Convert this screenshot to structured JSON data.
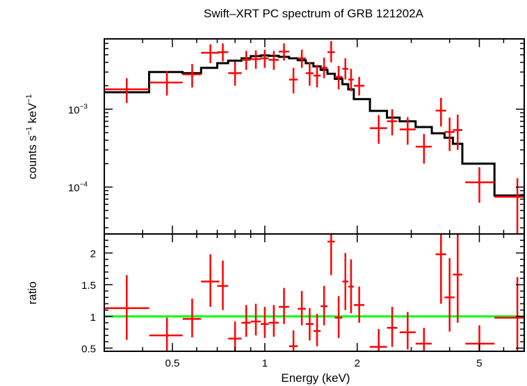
{
  "chart_data": [
    {
      "type": "scatter",
      "panel": "spectrum",
      "title": "Swift–XRT PC spectrum of GRB 121202A",
      "ylabel_main": "counts s",
      "ylabel_sup1": "−1",
      "ylabel_mid": " keV",
      "ylabel_sup2": "−1",
      "xscale": "log",
      "yscale": "log",
      "xlim": [
        0.3,
        7.0
      ],
      "ylim": [
        2.5e-05,
        0.008
      ],
      "yticks": [
        {
          "base": "10",
          "exp": "−3",
          "value": 0.001
        },
        {
          "base": "10",
          "exp": "−4",
          "value": 0.0001
        }
      ],
      "colors": {
        "data": "#ff0000",
        "model": "#000000"
      },
      "series": [
        {
          "style": "crosses",
          "points": [
            {
              "x": 0.355,
              "xlo": 0.3,
              "xhi": 0.42,
              "y": 0.0018,
              "ylo": 0.0012,
              "yhi": 0.0025
            },
            {
              "x": 0.48,
              "xlo": 0.42,
              "xhi": 0.54,
              "y": 0.0022,
              "ylo": 0.0015,
              "yhi": 0.0031
            },
            {
              "x": 0.58,
              "xlo": 0.54,
              "xhi": 0.62,
              "y": 0.0028,
              "ylo": 0.0019,
              "yhi": 0.0038
            },
            {
              "x": 0.665,
              "xlo": 0.62,
              "xhi": 0.71,
              "y": 0.0053,
              "ylo": 0.0039,
              "yhi": 0.0068
            },
            {
              "x": 0.73,
              "xlo": 0.7,
              "xhi": 0.76,
              "y": 0.0054,
              "ylo": 0.0041,
              "yhi": 0.007
            },
            {
              "x": 0.8,
              "xlo": 0.76,
              "xhi": 0.84,
              "y": 0.0029,
              "ylo": 0.002,
              "yhi": 0.0041
            },
            {
              "x": 0.87,
              "xlo": 0.84,
              "xhi": 0.9,
              "y": 0.0043,
              "ylo": 0.0032,
              "yhi": 0.0056
            },
            {
              "x": 0.935,
              "xlo": 0.9,
              "xhi": 0.97,
              "y": 0.0044,
              "ylo": 0.0033,
              "yhi": 0.0057
            },
            {
              "x": 1.0,
              "xlo": 0.97,
              "xhi": 1.03,
              "y": 0.0045,
              "ylo": 0.0034,
              "yhi": 0.0058
            },
            {
              "x": 1.07,
              "xlo": 1.03,
              "xhi": 1.11,
              "y": 0.0043,
              "ylo": 0.0032,
              "yhi": 0.0056
            },
            {
              "x": 1.155,
              "xlo": 1.11,
              "xhi": 1.2,
              "y": 0.0055,
              "ylo": 0.0042,
              "yhi": 0.007
            },
            {
              "x": 1.24,
              "xlo": 1.2,
              "xhi": 1.28,
              "y": 0.0024,
              "ylo": 0.0016,
              "yhi": 0.0034
            },
            {
              "x": 1.32,
              "xlo": 1.28,
              "xhi": 1.36,
              "y": 0.0045,
              "ylo": 0.0034,
              "yhi": 0.0058
            },
            {
              "x": 1.4,
              "xlo": 1.36,
              "xhi": 1.44,
              "y": 0.0029,
              "ylo": 0.002,
              "yhi": 0.004
            },
            {
              "x": 1.48,
              "xlo": 1.44,
              "xhi": 1.52,
              "y": 0.0027,
              "ylo": 0.0019,
              "yhi": 0.0037
            },
            {
              "x": 1.56,
              "xlo": 1.52,
              "xhi": 1.6,
              "y": 0.0034,
              "ylo": 0.0025,
              "yhi": 0.0046
            },
            {
              "x": 1.645,
              "xlo": 1.6,
              "xhi": 1.69,
              "y": 0.0054,
              "ylo": 0.004,
              "yhi": 0.0075
            },
            {
              "x": 1.74,
              "xlo": 1.69,
              "xhi": 1.79,
              "y": 0.0026,
              "ylo": 0.0018,
              "yhi": 0.0036
            },
            {
              "x": 1.83,
              "xlo": 1.79,
              "xhi": 1.87,
              "y": 0.0033,
              "ylo": 0.0024,
              "yhi": 0.0045
            },
            {
              "x": 1.91,
              "xlo": 1.87,
              "xhi": 1.95,
              "y": 0.0024,
              "ylo": 0.0017,
              "yhi": 0.0033
            },
            {
              "x": 2.03,
              "xlo": 1.95,
              "xhi": 2.11,
              "y": 0.002,
              "ylo": 0.0015,
              "yhi": 0.0026
            },
            {
              "x": 2.35,
              "xlo": 2.2,
              "xhi": 2.5,
              "y": 0.00057,
              "ylo": 0.00036,
              "yhi": 0.00084
            },
            {
              "x": 2.6,
              "xlo": 2.5,
              "xhi": 2.7,
              "y": 0.0007,
              "ylo": 0.00046,
              "yhi": 0.001
            },
            {
              "x": 2.92,
              "xlo": 2.75,
              "xhi": 3.1,
              "y": 0.00055,
              "ylo": 0.00035,
              "yhi": 0.00079
            },
            {
              "x": 3.3,
              "xlo": 3.1,
              "xhi": 3.5,
              "y": 0.00033,
              "ylo": 0.0002,
              "yhi": 0.00048
            },
            {
              "x": 3.75,
              "xlo": 3.6,
              "xhi": 3.9,
              "y": 0.00096,
              "ylo": 0.0006,
              "yhi": 0.0014
            },
            {
              "x": 4.0,
              "xlo": 3.85,
              "xhi": 4.15,
              "y": 0.00051,
              "ylo": 0.00029,
              "yhi": 0.00078
            },
            {
              "x": 4.25,
              "xlo": 4.1,
              "xhi": 4.4,
              "y": 0.00054,
              "ylo": 0.0003,
              "yhi": 0.00085
            },
            {
              "x": 5.0,
              "xlo": 4.5,
              "xhi": 5.6,
              "y": 0.000115,
              "ylo": 6.3e-05,
              "yhi": 0.00018
            },
            {
              "x": 6.65,
              "xlo": 5.6,
              "xhi": 7.0,
              "y": 7.5e-05,
              "ylo": 2.5e-05,
              "yhi": 0.00013
            }
          ]
        },
        {
          "style": "step",
          "edges": [
            0.3,
            0.42,
            0.54,
            0.62,
            0.7,
            0.76,
            0.84,
            0.9,
            0.97,
            1.03,
            1.11,
            1.2,
            1.28,
            1.36,
            1.44,
            1.52,
            1.6,
            1.69,
            1.79,
            1.87,
            1.95,
            2.2,
            2.5,
            2.75,
            3.1,
            3.5,
            3.85,
            4.1,
            4.4,
            5.6,
            7.0
          ],
          "values": [
            0.00165,
            0.003,
            0.0029,
            0.0034,
            0.0039,
            0.0042,
            0.0045,
            0.0048,
            0.0049,
            0.00485,
            0.0047,
            0.0045,
            0.00425,
            0.0039,
            0.00355,
            0.0032,
            0.00285,
            0.00245,
            0.0021,
            0.0018,
            0.00135,
            0.00095,
            0.00078,
            0.0007,
            0.00059,
            0.00049,
            0.00043,
            0.00036,
            0.0002,
            7.8e-05
          ]
        }
      ]
    },
    {
      "type": "scatter",
      "panel": "ratio",
      "xlabel": "Energy (keV)",
      "ylabel": "ratio",
      "xscale": "log",
      "xlim": [
        0.3,
        7.0
      ],
      "ylim": [
        0.45,
        2.3
      ],
      "xtick_labels": [
        {
          "label": "0.5",
          "value": 0.5
        },
        {
          "label": "1",
          "value": 1
        },
        {
          "label": "2",
          "value": 2
        },
        {
          "label": "5",
          "value": 5
        }
      ],
      "ytick_labels": [
        {
          "label": "0.5",
          "value": 0.5
        },
        {
          "label": "1",
          "value": 1
        },
        {
          "label": "1.5",
          "value": 1.5
        },
        {
          "label": "2",
          "value": 2
        }
      ],
      "reference_line": {
        "y": 1.0,
        "color": "#00ff00"
      },
      "colors": {
        "data": "#ff0000"
      },
      "series": [
        {
          "style": "crosses",
          "points": [
            {
              "x": 0.355,
              "xlo": 0.3,
              "xhi": 0.42,
              "y": 1.13,
              "ylo": 0.63,
              "yhi": 1.65
            },
            {
              "x": 0.48,
              "xlo": 0.42,
              "xhi": 0.54,
              "y": 0.7,
              "ylo": 0.45,
              "yhi": 0.98
            },
            {
              "x": 0.58,
              "xlo": 0.54,
              "xhi": 0.62,
              "y": 0.96,
              "ylo": 0.67,
              "yhi": 1.28
            },
            {
              "x": 0.665,
              "xlo": 0.62,
              "xhi": 0.71,
              "y": 1.55,
              "ylo": 1.15,
              "yhi": 1.98
            },
            {
              "x": 0.73,
              "xlo": 0.7,
              "xhi": 0.76,
              "y": 1.48,
              "ylo": 1.1,
              "yhi": 1.88
            },
            {
              "x": 0.8,
              "xlo": 0.76,
              "xhi": 0.84,
              "y": 0.65,
              "ylo": 0.45,
              "yhi": 0.92
            },
            {
              "x": 0.87,
              "xlo": 0.84,
              "xhi": 0.9,
              "y": 0.9,
              "ylo": 0.68,
              "yhi": 1.18
            },
            {
              "x": 0.935,
              "xlo": 0.9,
              "xhi": 0.97,
              "y": 0.92,
              "ylo": 0.7,
              "yhi": 1.2
            },
            {
              "x": 1.0,
              "xlo": 0.97,
              "xhi": 1.03,
              "y": 0.88,
              "ylo": 0.66,
              "yhi": 1.15
            },
            {
              "x": 1.07,
              "xlo": 1.03,
              "xhi": 1.11,
              "y": 0.9,
              "ylo": 0.68,
              "yhi": 1.18
            },
            {
              "x": 1.155,
              "xlo": 1.11,
              "xhi": 1.2,
              "y": 1.15,
              "ylo": 0.88,
              "yhi": 1.45
            },
            {
              "x": 1.24,
              "xlo": 1.2,
              "xhi": 1.28,
              "y": 0.53,
              "ylo": 0.45,
              "yhi": 0.78
            },
            {
              "x": 1.32,
              "xlo": 1.28,
              "xhi": 1.36,
              "y": 1.12,
              "ylo": 0.86,
              "yhi": 1.4
            },
            {
              "x": 1.4,
              "xlo": 1.36,
              "xhi": 1.44,
              "y": 0.88,
              "ylo": 0.62,
              "yhi": 1.13
            },
            {
              "x": 1.48,
              "xlo": 1.44,
              "xhi": 1.52,
              "y": 0.77,
              "ylo": 0.53,
              "yhi": 1.04
            },
            {
              "x": 1.56,
              "xlo": 1.52,
              "xhi": 1.6,
              "y": 1.16,
              "ylo": 0.86,
              "yhi": 1.48
            },
            {
              "x": 1.645,
              "xlo": 1.6,
              "xhi": 1.69,
              "y": 2.18,
              "ylo": 1.65,
              "yhi": 2.3
            },
            {
              "x": 1.74,
              "xlo": 1.69,
              "xhi": 1.79,
              "y": 0.98,
              "ylo": 0.66,
              "yhi": 1.32
            },
            {
              "x": 1.83,
              "xlo": 1.79,
              "xhi": 1.87,
              "y": 1.55,
              "ylo": 1.1,
              "yhi": 2.0
            },
            {
              "x": 1.91,
              "xlo": 1.87,
              "xhi": 1.95,
              "y": 1.47,
              "ylo": 1.05,
              "yhi": 1.9
            },
            {
              "x": 2.03,
              "xlo": 1.95,
              "xhi": 2.11,
              "y": 1.18,
              "ylo": 0.9,
              "yhi": 1.47
            },
            {
              "x": 2.35,
              "xlo": 2.2,
              "xhi": 2.5,
              "y": 0.52,
              "ylo": 0.45,
              "yhi": 0.8
            },
            {
              "x": 2.6,
              "xlo": 2.5,
              "xhi": 2.7,
              "y": 0.82,
              "ylo": 0.52,
              "yhi": 1.15
            },
            {
              "x": 2.92,
              "xlo": 2.75,
              "xhi": 3.1,
              "y": 0.75,
              "ylo": 0.48,
              "yhi": 1.07
            },
            {
              "x": 3.3,
              "xlo": 3.1,
              "xhi": 3.5,
              "y": 0.57,
              "ylo": 0.45,
              "yhi": 0.82
            },
            {
              "x": 3.75,
              "xlo": 3.6,
              "xhi": 3.9,
              "y": 1.98,
              "ylo": 1.2,
              "yhi": 2.3
            },
            {
              "x": 4.0,
              "xlo": 3.85,
              "xhi": 4.15,
              "y": 1.3,
              "ylo": 0.76,
              "yhi": 1.92
            },
            {
              "x": 4.25,
              "xlo": 4.1,
              "xhi": 4.4,
              "y": 1.66,
              "ylo": 0.9,
              "yhi": 2.3
            },
            {
              "x": 5.0,
              "xlo": 4.5,
              "xhi": 5.6,
              "y": 0.57,
              "ylo": 0.45,
              "yhi": 0.86
            },
            {
              "x": 6.65,
              "xlo": 5.6,
              "xhi": 7.0,
              "y": 0.98,
              "ylo": 0.45,
              "yhi": 1.62
            }
          ]
        }
      ]
    }
  ]
}
